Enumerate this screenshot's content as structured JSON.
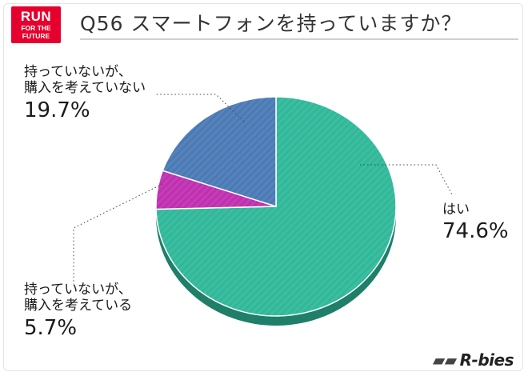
{
  "logo": {
    "line1": "RUN",
    "line2": "FOR THE",
    "line3": "FUTURE"
  },
  "title": "Q56 スマートフォンを持っていますか？",
  "chart_data": {
    "type": "pie",
    "title": "Q56 スマートフォンを持っていますか？",
    "slices": [
      {
        "label": "はい",
        "value": 74.6,
        "value_text": "74.6%",
        "color": "#2fb899",
        "side_color": "#1f7f68"
      },
      {
        "label_line1": "持っていないが、",
        "label_line2": "購入を考えている",
        "value": 5.7,
        "value_text": "5.7%",
        "color": "#bf2fb0",
        "side_color": "#7a1a70"
      },
      {
        "label_line1": "持っていないが、",
        "label_line2": "購入を考えていない",
        "value": 19.7,
        "value_text": "19.7%",
        "color": "#4a7ab5",
        "side_color": "#2f4f7a"
      }
    ]
  },
  "watermark": "R-bies"
}
